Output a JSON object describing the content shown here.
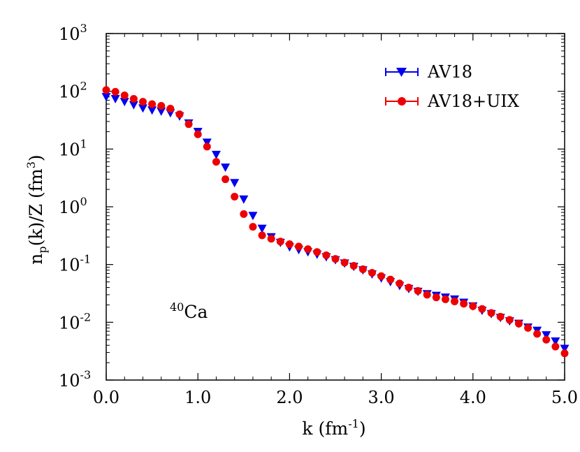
{
  "chart_data": {
    "type": "scatter",
    "xlabel": {
      "main": "k (fm",
      "sup": "-1",
      "close": ")"
    },
    "ylabel": {
      "pre": "n",
      "sub": "p",
      "mid": "(k)/Z (fm",
      "sup": "3",
      "close": ")"
    },
    "xlim": [
      0,
      5
    ],
    "ylim": [
      0.001,
      1000
    ],
    "yscale": "log",
    "x_ticks": [
      {
        "value": 0,
        "label": "0.0"
      },
      {
        "value": 1,
        "label": "1.0"
      },
      {
        "value": 2,
        "label": "2.0"
      },
      {
        "value": 3,
        "label": "3.0"
      },
      {
        "value": 4,
        "label": "4.0"
      },
      {
        "value": 5,
        "label": "5.0"
      }
    ],
    "y_ticks": [
      {
        "value": 0.001,
        "base": "10",
        "exp": "-3"
      },
      {
        "value": 0.01,
        "base": "10",
        "exp": "-2"
      },
      {
        "value": 0.1,
        "base": "10",
        "exp": "-1"
      },
      {
        "value": 1,
        "base": "10",
        "exp": "0"
      },
      {
        "value": 10,
        "base": "10",
        "exp": "1"
      },
      {
        "value": 100,
        "base": "10",
        "exp": "2"
      },
      {
        "value": 1000,
        "base": "10",
        "exp": "3"
      }
    ],
    "grid": false,
    "legend_position": "top-right",
    "annotation": {
      "sup": "40",
      "text": "Ca"
    },
    "series": [
      {
        "name": "AV18",
        "marker": "triangle-down",
        "color": "#0000ee",
        "x": [
          0.0,
          0.1,
          0.2,
          0.3,
          0.4,
          0.5,
          0.6,
          0.7,
          0.8,
          0.9,
          1.0,
          1.1,
          1.2,
          1.3,
          1.4,
          1.5,
          1.6,
          1.7,
          1.8,
          1.9,
          2.0,
          2.1,
          2.2,
          2.3,
          2.4,
          2.5,
          2.6,
          2.7,
          2.8,
          2.9,
          3.0,
          3.1,
          3.2,
          3.3,
          3.4,
          3.5,
          3.6,
          3.7,
          3.8,
          3.9,
          4.0,
          4.1,
          4.2,
          4.3,
          4.4,
          4.5,
          4.6,
          4.7,
          4.8,
          4.9,
          5.0
        ],
        "y": [
          80,
          74,
          66,
          58,
          51,
          47,
          45,
          42,
          37,
          28,
          20,
          13,
          8,
          4.8,
          2.6,
          1.35,
          0.7,
          0.42,
          0.3,
          0.24,
          0.2,
          0.18,
          0.165,
          0.15,
          0.135,
          0.12,
          0.105,
          0.092,
          0.08,
          0.068,
          0.058,
          0.05,
          0.043,
          0.038,
          0.034,
          0.031,
          0.029,
          0.027,
          0.025,
          0.022,
          0.019,
          0.016,
          0.014,
          0.012,
          0.0105,
          0.0095,
          0.0082,
          0.0072,
          0.006,
          0.0047,
          0.0035
        ]
      },
      {
        "name": "AV18+UIX",
        "marker": "circle",
        "color": "#ee0000",
        "x": [
          0.0,
          0.1,
          0.2,
          0.3,
          0.4,
          0.5,
          0.6,
          0.7,
          0.8,
          0.9,
          1.0,
          1.1,
          1.2,
          1.3,
          1.4,
          1.5,
          1.6,
          1.7,
          1.8,
          1.9,
          2.0,
          2.1,
          2.2,
          2.3,
          2.4,
          2.5,
          2.6,
          2.7,
          2.8,
          2.9,
          3.0,
          3.1,
          3.2,
          3.3,
          3.4,
          3.5,
          3.6,
          3.7,
          3.8,
          3.9,
          4.0,
          4.1,
          4.2,
          4.3,
          4.4,
          4.5,
          4.6,
          4.7,
          4.8,
          4.9,
          5.0
        ],
        "y": [
          105,
          98,
          85,
          74,
          66,
          60,
          56,
          50,
          40,
          27,
          18,
          11,
          6,
          3,
          1.5,
          0.75,
          0.45,
          0.32,
          0.28,
          0.25,
          0.225,
          0.205,
          0.185,
          0.165,
          0.145,
          0.125,
          0.108,
          0.095,
          0.083,
          0.072,
          0.063,
          0.055,
          0.047,
          0.04,
          0.035,
          0.03,
          0.027,
          0.025,
          0.023,
          0.021,
          0.019,
          0.017,
          0.0145,
          0.0125,
          0.011,
          0.0095,
          0.008,
          0.0063,
          0.005,
          0.0038,
          0.0029
        ]
      }
    ]
  }
}
